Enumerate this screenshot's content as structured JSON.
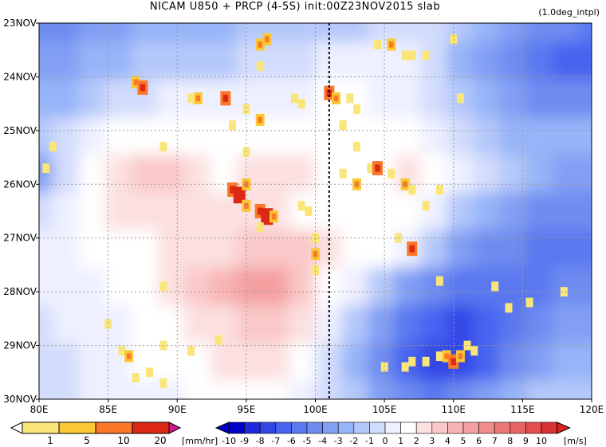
{
  "title": "NICAM   U850 + PRCP (4-5S) init:00Z23NOV2015 slab",
  "subtitle": "(1.0deg_intpl)",
  "chart_data": {
    "type": "heatmap",
    "xlabel": "",
    "ylabel": "",
    "x_ticks": [
      "80E",
      "85E",
      "90E",
      "95E",
      "100E",
      "105E",
      "110E",
      "115E",
      "120E"
    ],
    "y_ticks": [
      "23NOV",
      "24NOV",
      "25NOV",
      "26NOV",
      "27NOV",
      "28NOV",
      "29NOV",
      "30NOV"
    ],
    "xlim": [
      80,
      120
    ],
    "ylim_days": [
      23,
      30
    ],
    "grid": true,
    "marker_line_lon": 101,
    "u850_levels": [
      -10,
      -9,
      -8,
      -7,
      -6,
      -5,
      -4,
      -3,
      -2,
      -1,
      0,
      1,
      2,
      3,
      4,
      5,
      6,
      7,
      8,
      9,
      10
    ],
    "u850_colors": [
      "#0000c8",
      "#1e28dc",
      "#3246e6",
      "#4664f0",
      "#5a78f0",
      "#6e8cf0",
      "#829ff4",
      "#96b4f8",
      "#b4c8fa",
      "#d2dcfc",
      "#eef0ff",
      "#ffffff",
      "#fce0e0",
      "#fac8c8",
      "#f8b4b4",
      "#f4a0a0",
      "#f08c8c",
      "#ec7878",
      "#e86464",
      "#e44e4e",
      "#d83232"
    ],
    "u850_field": [
      [
        -5,
        -5,
        -4,
        -4,
        -3,
        -3,
        -3,
        -3,
        -2,
        -2,
        -2,
        -2,
        -2,
        -1,
        -1,
        -1,
        -2,
        -3,
        -4,
        -5,
        -5,
        -6
      ],
      [
        -4,
        -4,
        -3,
        -3,
        -2,
        -2,
        -2,
        -2,
        -1,
        -1,
        -1,
        0,
        0,
        0,
        0,
        -1,
        -3,
        -4,
        -5,
        -6,
        -7,
        -7
      ],
      [
        -3,
        -3,
        -2,
        -1,
        -1,
        0,
        0,
        0,
        0,
        0,
        0,
        1,
        1,
        0,
        0,
        -1,
        -2,
        -3,
        -4,
        -5,
        -5,
        -5
      ],
      [
        -2,
        -1,
        0,
        1,
        1,
        1,
        1,
        1,
        1,
        1,
        1,
        1,
        1,
        1,
        1,
        0,
        -1,
        -2,
        -3,
        -3,
        -3,
        -3
      ],
      [
        -4,
        -1,
        1,
        2,
        3,
        3,
        2,
        1,
        2,
        2,
        2,
        1,
        1,
        1,
        2,
        1,
        0,
        -1,
        -2,
        -3,
        -4,
        -4
      ],
      [
        -1,
        0,
        1,
        2,
        2,
        2,
        2,
        2,
        2,
        2,
        1,
        1,
        1,
        1,
        1,
        0,
        -2,
        -3,
        -4,
        -5,
        -5,
        -5
      ],
      [
        0,
        0,
        1,
        1,
        1,
        2,
        2,
        2,
        3,
        3,
        3,
        2,
        1,
        1,
        0,
        -2,
        -4,
        -5,
        -5,
        -6,
        -6,
        -6
      ],
      [
        0,
        0,
        0,
        1,
        1,
        2,
        3,
        4,
        5,
        5,
        3,
        1,
        0,
        -2,
        -4,
        -5,
        -6,
        -6,
        -6,
        -6,
        -5,
        -5
      ],
      [
        -1,
        0,
        0,
        0,
        1,
        1,
        2,
        2,
        3,
        3,
        2,
        0,
        -2,
        -4,
        -6,
        -7,
        -8,
        -7,
        -6,
        -5,
        -4,
        -4
      ],
      [
        -1,
        -1,
        0,
        0,
        1,
        1,
        1,
        2,
        2,
        2,
        1,
        -1,
        -3,
        -5,
        -7,
        -8,
        -8,
        -7,
        -5,
        -4,
        -3,
        -3
      ],
      [
        -1,
        -1,
        0,
        0,
        0,
        0,
        1,
        1,
        1,
        1,
        0,
        -1,
        -2,
        -4,
        -5,
        -6,
        -5,
        -4,
        -3,
        -2,
        -2,
        -2
      ]
    ],
    "prcp_levels": [
      1,
      5,
      10,
      20
    ],
    "prcp_colors": [
      "#fae678",
      "#fac832",
      "#fa7828",
      "#dc2814"
    ],
    "prcp_units": "[mm/hr]",
    "u850_units": "[m/s]",
    "prcp_cells": [
      [
        87,
        24.1,
        2
      ],
      [
        87.5,
        24.2,
        3
      ],
      [
        91.5,
        24.4,
        2
      ],
      [
        91,
        24.4,
        1
      ],
      [
        93.5,
        24.4,
        3
      ],
      [
        96,
        23.4,
        2
      ],
      [
        96.5,
        23.3,
        2
      ],
      [
        96,
        23.8,
        1
      ],
      [
        101,
        24.3,
        3
      ],
      [
        101.5,
        24.4,
        2
      ],
      [
        102.5,
        24.4,
        1
      ],
      [
        98.5,
        24.4,
        1
      ],
      [
        99,
        24.5,
        1
      ],
      [
        104.5,
        23.4,
        1
      ],
      [
        105.5,
        23.4,
        2
      ],
      [
        106.5,
        23.6,
        1
      ],
      [
        107,
        23.6,
        1
      ],
      [
        108,
        23.6,
        1
      ],
      [
        110,
        23.3,
        1
      ],
      [
        110.5,
        24.4,
        1
      ],
      [
        102,
        24.9,
        1
      ],
      [
        103,
        24.6,
        1
      ],
      [
        95,
        24.6,
        1
      ],
      [
        96,
        24.8,
        2
      ],
      [
        94,
        24.9,
        1
      ],
      [
        95,
        25.4,
        1
      ],
      [
        89,
        25.3,
        1
      ],
      [
        81,
        25.3,
        1
      ],
      [
        80.5,
        25.7,
        1
      ],
      [
        94,
        26.1,
        3
      ],
      [
        94.5,
        26.2,
        4
      ],
      [
        95,
        26.0,
        2
      ],
      [
        95,
        26.4,
        2
      ],
      [
        96,
        26.5,
        3
      ],
      [
        96.5,
        26.6,
        4
      ],
      [
        97,
        26.6,
        2
      ],
      [
        96,
        26.8,
        1
      ],
      [
        99,
        26.4,
        1
      ],
      [
        99.5,
        26.5,
        1
      ],
      [
        100,
        27.0,
        1
      ],
      [
        100,
        27.3,
        2
      ],
      [
        100,
        27.6,
        1
      ],
      [
        103,
        26.0,
        2
      ],
      [
        104,
        25.7,
        1
      ],
      [
        104.5,
        25.7,
        3
      ],
      [
        102,
        25.8,
        1
      ],
      [
        103,
        25.3,
        1
      ],
      [
        105.5,
        25.8,
        1
      ],
      [
        106.5,
        26.0,
        2
      ],
      [
        107,
        26.1,
        1
      ],
      [
        109,
        26.1,
        1
      ],
      [
        108,
        26.4,
        1
      ],
      [
        106,
        27.0,
        1
      ],
      [
        107,
        27.2,
        3
      ],
      [
        109,
        27.8,
        1
      ],
      [
        113,
        27.9,
        1
      ],
      [
        115.5,
        28.2,
        1
      ],
      [
        114,
        28.3,
        1
      ],
      [
        118,
        28.0,
        1
      ],
      [
        89,
        27.9,
        1
      ],
      [
        85,
        28.6,
        1
      ],
      [
        89,
        29.0,
        1
      ],
      [
        91,
        29.1,
        1
      ],
      [
        93,
        28.9,
        1
      ],
      [
        86,
        29.1,
        1
      ],
      [
        86.5,
        29.2,
        2
      ],
      [
        87,
        29.6,
        1
      ],
      [
        88,
        29.5,
        1
      ],
      [
        89,
        29.7,
        1
      ],
      [
        109,
        29.2,
        1
      ],
      [
        109.5,
        29.2,
        2
      ],
      [
        110,
        29.3,
        3
      ],
      [
        110.5,
        29.2,
        2
      ],
      [
        111,
        29.0,
        1
      ],
      [
        107,
        29.3,
        1
      ],
      [
        108,
        29.3,
        1
      ],
      [
        111.5,
        29.1,
        1
      ],
      [
        105,
        29.4,
        1
      ],
      [
        106.5,
        29.4,
        1
      ]
    ]
  },
  "colorbars": {
    "prcp_labels": [
      "1",
      "5",
      "10",
      "20"
    ],
    "prcp_units": "[mm/hr]",
    "u850_labels": [
      "-10",
      "-9",
      "-8",
      "-7",
      "-6",
      "-5",
      "-4",
      "-3",
      "-2",
      "-1",
      "0",
      "1",
      "2",
      "3",
      "4",
      "5",
      "6",
      "7",
      "8",
      "9",
      "10"
    ],
    "u850_units": "[m/s]"
  }
}
